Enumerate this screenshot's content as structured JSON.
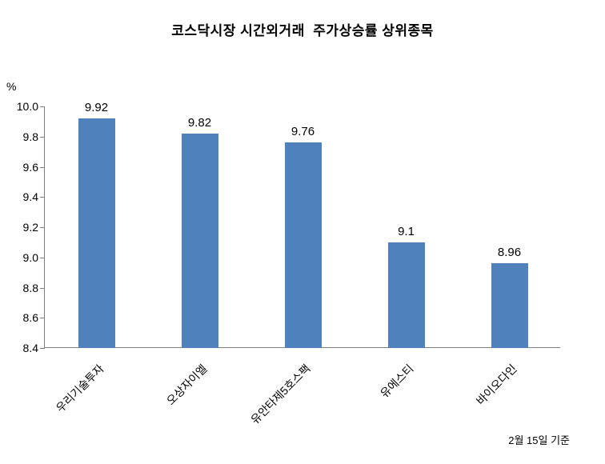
{
  "chart_data": {
    "type": "bar",
    "title": "코스닥시장 시간외거래  주가상승률 상위종목",
    "ylabel": "%",
    "xlabel": "",
    "categories": [
      "우리기술투자",
      "오상자이엘",
      "유안타제5호스팩",
      "유에스티",
      "바이오다인"
    ],
    "values": [
      9.92,
      9.82,
      9.76,
      9.1,
      8.96
    ],
    "value_labels": [
      "9.92",
      "9.82",
      "9.76",
      "9.1",
      "8.96"
    ],
    "ylim": [
      8.4,
      10.0
    ],
    "yticks": [
      "10.0",
      "9.8",
      "9.6",
      "9.4",
      "9.2",
      "9.0",
      "8.8",
      "8.6",
      "8.4"
    ],
    "grid": false,
    "legend": "none",
    "bar_color": "#4F81BD",
    "axis_color": "#7f7f7f",
    "note": "2월 15일 기준"
  }
}
